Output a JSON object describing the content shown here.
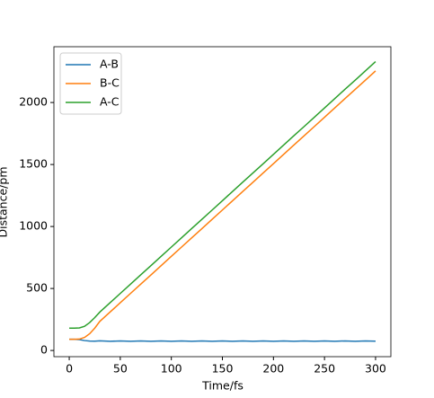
{
  "chart_data": {
    "type": "line",
    "x_label": "Time/fs",
    "y_label": "Distance/pm",
    "x": [
      0,
      5,
      10,
      15,
      20,
      25,
      30,
      40,
      50,
      60,
      70,
      80,
      90,
      100,
      110,
      120,
      130,
      140,
      150,
      160,
      170,
      180,
      190,
      200,
      210,
      220,
      230,
      240,
      250,
      260,
      270,
      280,
      290,
      300
    ],
    "series": [
      {
        "name": "A-B",
        "color": "#1f77b4",
        "values": [
          90,
          90,
          88,
          80,
          76,
          75,
          78,
          74,
          77,
          74,
          77,
          74,
          77,
          74,
          77,
          74,
          77,
          74,
          77,
          74,
          77,
          74,
          77,
          74,
          77,
          74,
          77,
          74,
          77,
          74,
          77,
          74,
          77,
          75
        ]
      },
      {
        "name": "B-C",
        "color": "#ff7f0e",
        "values": [
          90,
          90,
          92,
          105,
          135,
          180,
          235,
          310,
          385,
          460,
          535,
          609,
          684,
          759,
          834,
          909,
          983,
          1058,
          1133,
          1208,
          1283,
          1357,
          1432,
          1507,
          1582,
          1657,
          1731,
          1806,
          1881,
          1956,
          2031,
          2105,
          2180,
          2255
        ]
      },
      {
        "name": "A-C",
        "color": "#2ca02c",
        "values": [
          180,
          180,
          182,
          195,
          225,
          265,
          310,
          385,
          460,
          535,
          610,
          684,
          759,
          834,
          909,
          984,
          1058,
          1133,
          1208,
          1283,
          1358,
          1432,
          1507,
          1582,
          1657,
          1732,
          1806,
          1881,
          1956,
          2031,
          2106,
          2180,
          2255,
          2330
        ]
      }
    ],
    "xlim": [
      -15,
      315
    ],
    "ylim": [
      -50,
      2450
    ],
    "xticks": [
      0,
      50,
      100,
      150,
      200,
      250,
      300
    ],
    "yticks": [
      0,
      500,
      1000,
      1500,
      2000
    ],
    "legend": "upper left"
  }
}
